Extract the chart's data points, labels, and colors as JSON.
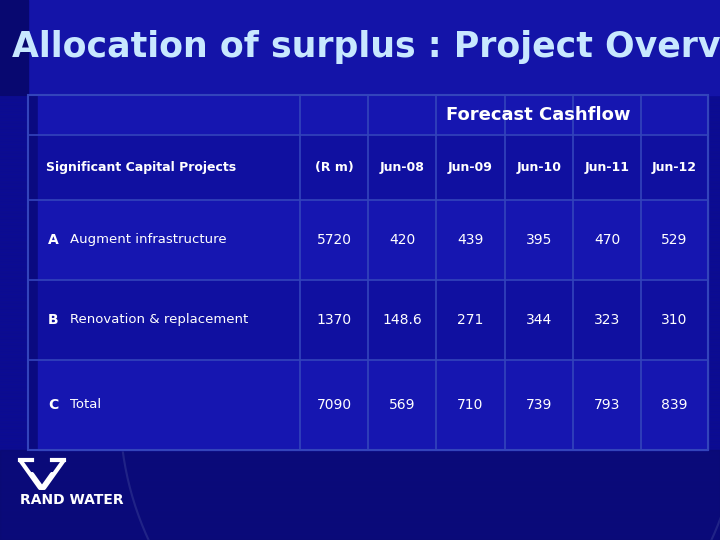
{
  "title": "Allocation of surplus : Project Overview",
  "title_color": "#C8E8FF",
  "title_fontsize": 26,
  "bg_color": "#0a0a8a",
  "title_bg_color": "#1a1ab0",
  "table_header_label": "Forecast Cashflow",
  "col_headers": [
    "Significant Capital Projects",
    "(R m)",
    "Jun-08",
    "Jun-09",
    "Jun-10",
    "Jun-11",
    "Jun-12"
  ],
  "rows": [
    [
      "A",
      "Augment infrastructure",
      "5720",
      "420",
      "439",
      "395",
      "470",
      "529"
    ],
    [
      "B",
      "Renovation & replacement",
      "1370",
      "148.6",
      "271",
      "344",
      "323",
      "310"
    ],
    [
      "C",
      "Total",
      "7090",
      "569",
      "710",
      "739",
      "793",
      "839"
    ]
  ],
  "text_color": "#FFFFFF",
  "cell_line_color": "#2233AA",
  "logo_text": "RAND WATER",
  "title_stripe_colors": [
    "#1818b8",
    "#0c0c9c",
    "#2020c0",
    "#0e0e9e",
    "#1616b4"
  ],
  "table_bg_color": "#1a1ab8",
  "row_alt_color": "#151590"
}
